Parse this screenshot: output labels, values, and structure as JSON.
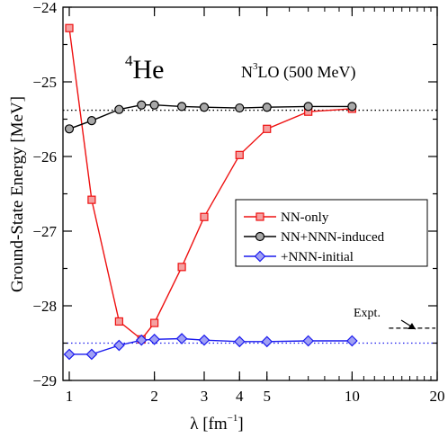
{
  "chart_data": {
    "type": "line",
    "title": {
      "sup": "4",
      "main": "He"
    },
    "subtitle": {
      "pre": "N",
      "sup": "3",
      "post": "LO (500 MeV)"
    },
    "xlabel": {
      "pre": "λ [fm",
      "sup": "−1",
      "post": "]"
    },
    "ylabel": "Ground-State Energy [MeV]",
    "x_scale": "log",
    "xlim": [
      0.95,
      20
    ],
    "ylim": [
      -29,
      -24
    ],
    "xticks": [
      {
        "value": 1,
        "label": "1"
      },
      {
        "value": 2,
        "label": "2"
      },
      {
        "value": 3,
        "label": "3"
      },
      {
        "value": 4,
        "label": "4"
      },
      {
        "value": 5,
        "label": "5"
      },
      {
        "value": 10,
        "label": "10"
      },
      {
        "value": 20,
        "label": "20"
      }
    ],
    "yticks": [
      {
        "value": -24,
        "label": "−24"
      },
      {
        "value": -25,
        "label": "−25"
      },
      {
        "value": -26,
        "label": "−26"
      },
      {
        "value": -27,
        "label": "−27"
      },
      {
        "value": -28,
        "label": "−28"
      },
      {
        "value": -29,
        "label": "−29"
      }
    ],
    "series": [
      {
        "name": "NN-only",
        "color": "#ee1111",
        "fill": "#f4a0a0",
        "marker": "square",
        "x": [
          1.0,
          1.2,
          1.5,
          1.8,
          2.0,
          2.5,
          3.0,
          4.0,
          5.0,
          7.0,
          10.0
        ],
        "y": [
          -24.28,
          -26.58,
          -28.21,
          -28.45,
          -28.23,
          -27.48,
          -26.81,
          -25.98,
          -25.63,
          -25.4,
          -25.36
        ]
      },
      {
        "name": "NN+NNN-induced",
        "color": "#000000",
        "fill": "#a8a8a8",
        "marker": "circle",
        "x": [
          1.0,
          1.2,
          1.5,
          1.8,
          2.0,
          2.5,
          3.0,
          4.0,
          5.0,
          7.0,
          10.0
        ],
        "y": [
          -25.63,
          -25.52,
          -25.37,
          -25.31,
          -25.31,
          -25.33,
          -25.34,
          -25.35,
          -25.34,
          -25.33,
          -25.33
        ]
      },
      {
        "name": "+NNN-initial",
        "color": "#1a1aee",
        "fill": "#a0a0f4",
        "marker": "diamond",
        "x": [
          1.0,
          1.2,
          1.5,
          1.8,
          2.0,
          2.5,
          3.0,
          4.0,
          5.0,
          7.0,
          10.0
        ],
        "y": [
          -28.65,
          -28.65,
          -28.53,
          -28.46,
          -28.45,
          -28.44,
          -28.46,
          -28.48,
          -28.48,
          -28.47,
          -28.47
        ]
      }
    ],
    "reference_lines": [
      {
        "y": -25.38,
        "color": "#000000",
        "style": "dotted"
      },
      {
        "y": -28.5,
        "color": "#1a1aee",
        "style": "dotted"
      }
    ],
    "expt": {
      "label": "Expt.",
      "y": -28.3,
      "x_range": [
        13.5,
        20
      ],
      "style": "dashed"
    },
    "legend": {
      "position": "center-right"
    }
  }
}
